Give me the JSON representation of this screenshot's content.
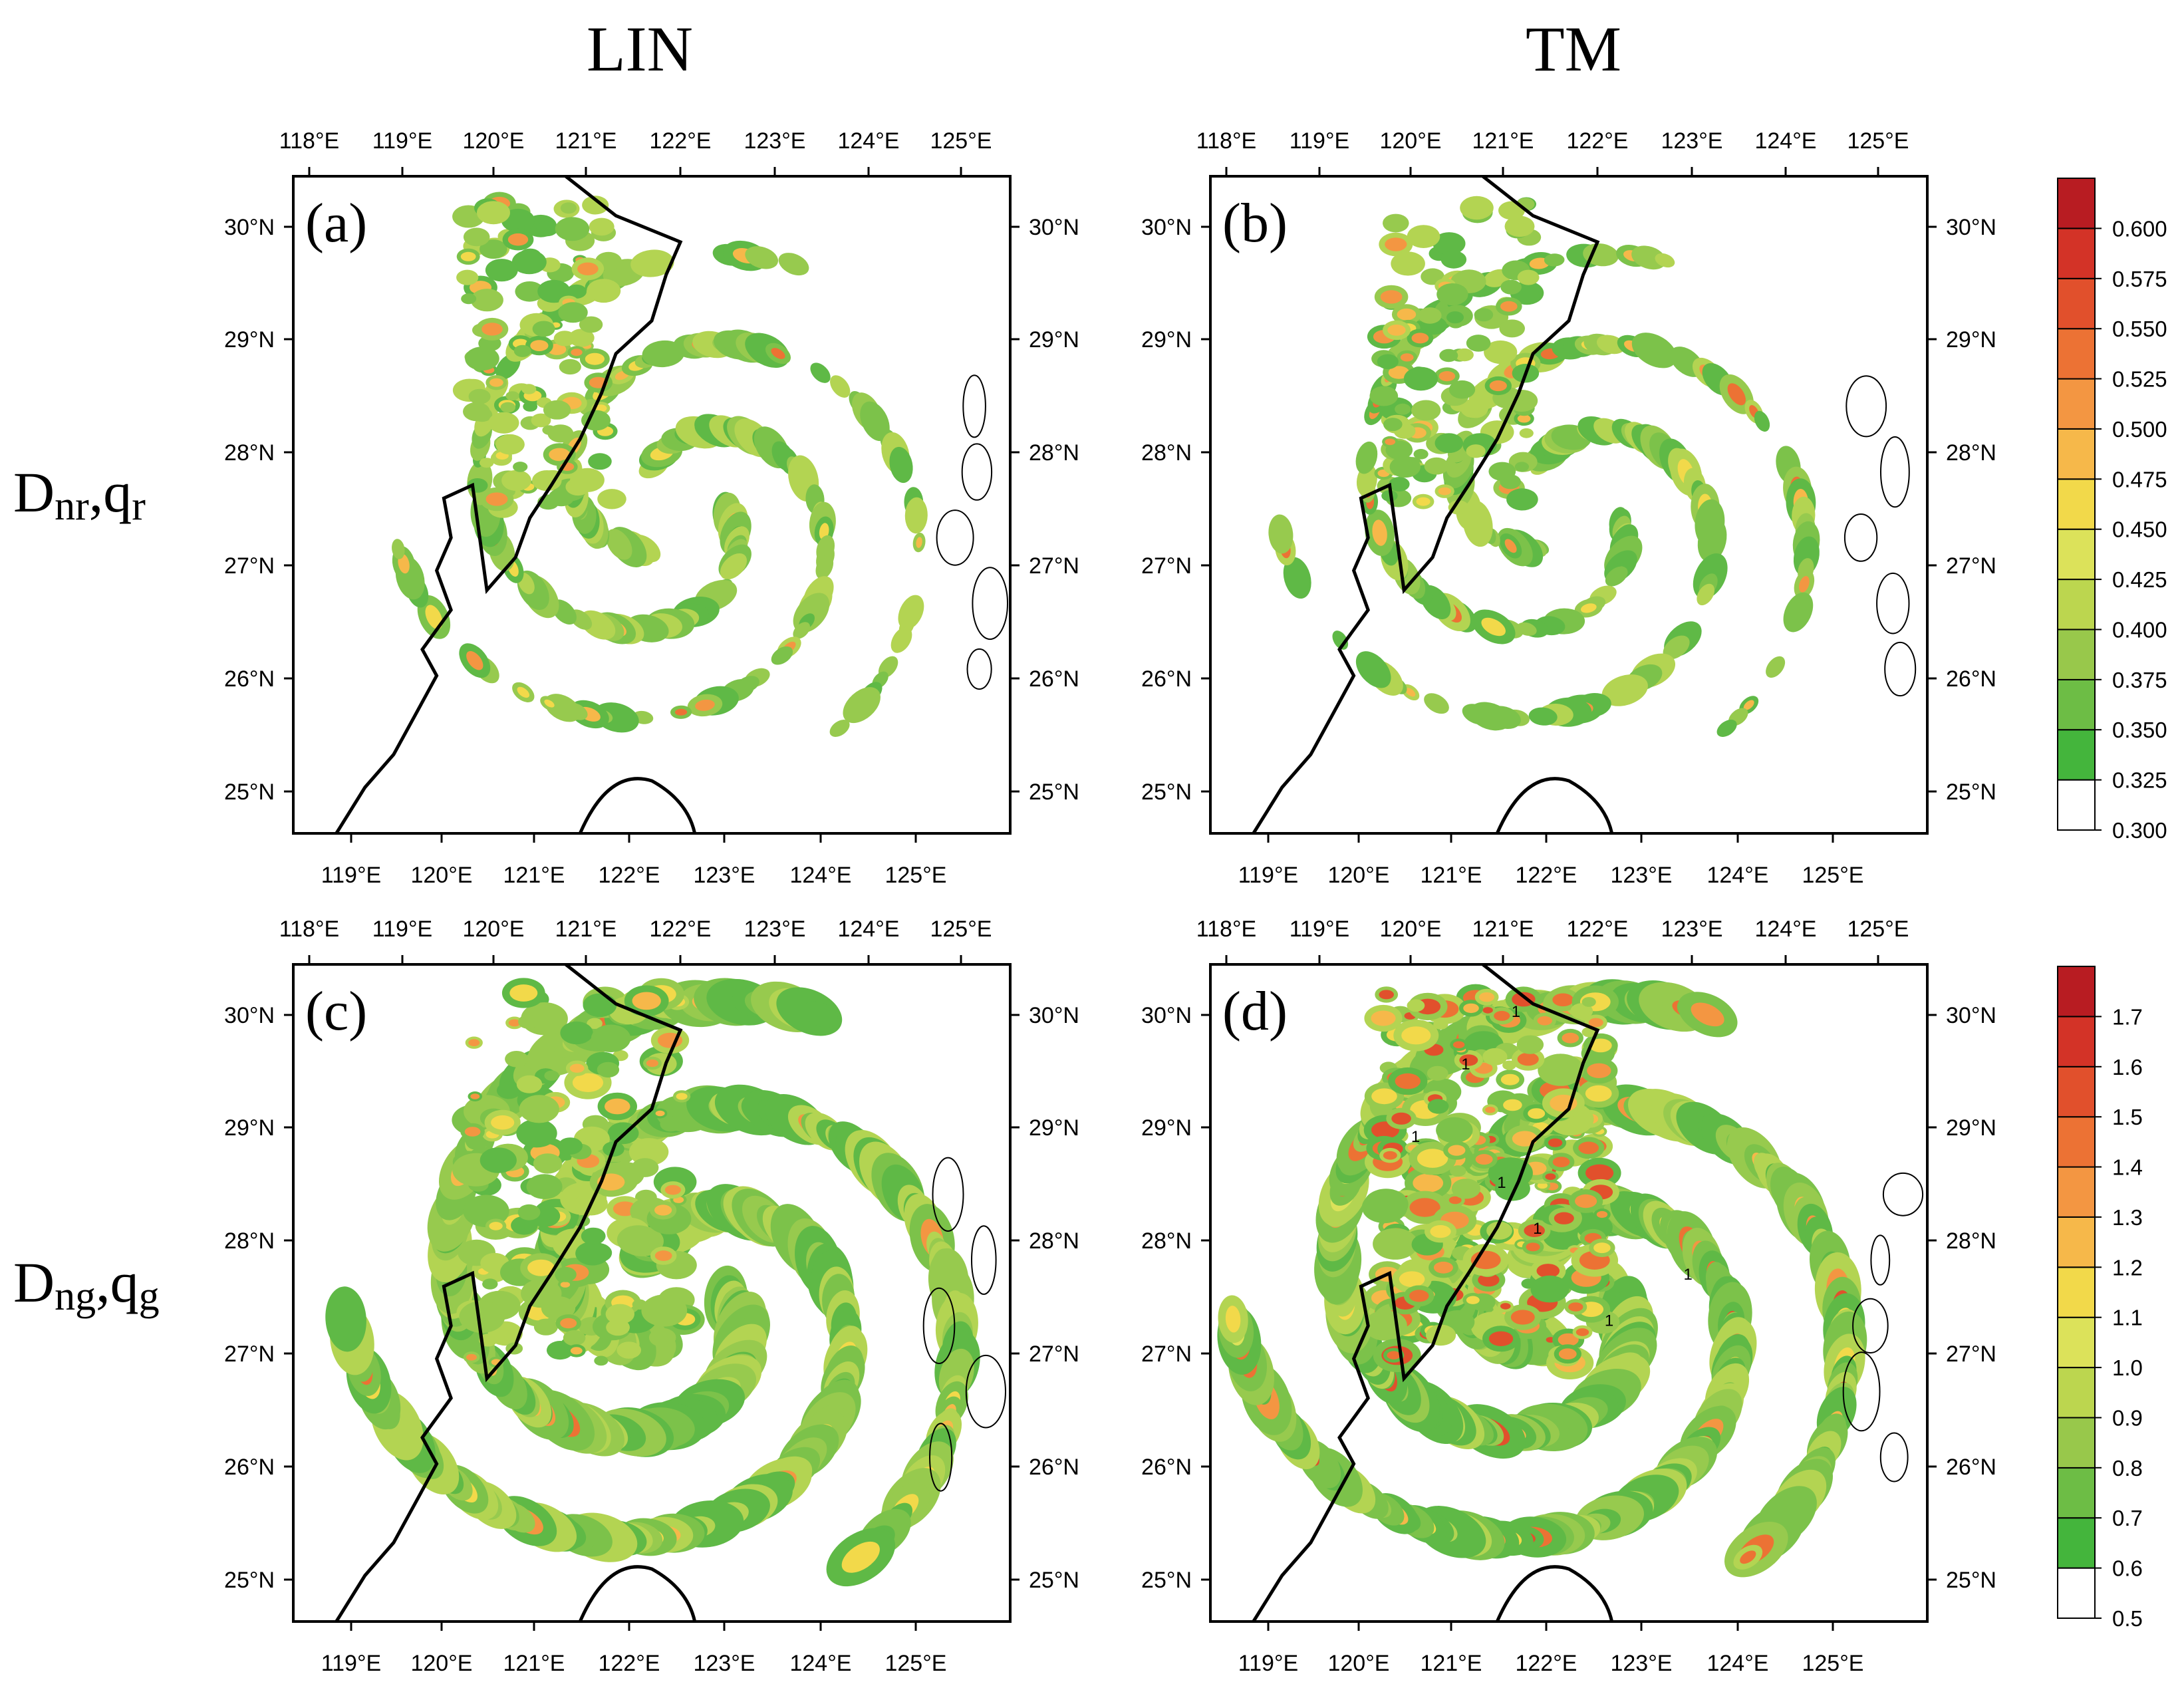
{
  "column_titles": [
    "LIN",
    "TM"
  ],
  "row_labels": [
    {
      "main1": "D",
      "sub1": "nr",
      "main2": ",q",
      "sub2": "r"
    },
    {
      "main1": "D",
      "sub1": "ng",
      "main2": ",q",
      "sub2": "g"
    }
  ],
  "lon_labels": [
    "118°E",
    "119°E",
    "120°E",
    "121°E",
    "122°E",
    "123°E",
    "124°E",
    "125°E"
  ],
  "lon_labels_bottom": [
    "119°E",
    "120°E",
    "121°E",
    "122°E",
    "123°E",
    "124°E",
    "125°E"
  ],
  "lat_labels": [
    "30°N",
    "29°N",
    "28°N",
    "27°N",
    "26°N",
    "25°N"
  ],
  "panels": [
    {
      "label": "(a)",
      "scheme": "LIN",
      "field": "Dnr,qr"
    },
    {
      "label": "(b)",
      "scheme": "TM",
      "field": "Dnr,qr"
    },
    {
      "label": "(c)",
      "scheme": "LIN",
      "field": "Dng,qg"
    },
    {
      "label": "(d)",
      "scheme": "TM",
      "field": "Dng,qg"
    }
  ],
  "colorbars": [
    {
      "labels": [
        "0.600",
        "0.575",
        "0.550",
        "0.525",
        "0.500",
        "0.475",
        "0.450",
        "0.425",
        "0.400",
        "0.375",
        "0.350",
        "0.325",
        "0.300"
      ],
      "colors": [
        "#ffffff",
        "#44b53c",
        "#6dbd45",
        "#98c84b",
        "#bcd64f",
        "#dce25a",
        "#f2d94a",
        "#f6b84a",
        "#f39642",
        "#ec7234",
        "#e1502c",
        "#d33327",
        "#b81c22"
      ]
    },
    {
      "labels": [
        "1.7",
        "1.6",
        "1.5",
        "1.4",
        "1.3",
        "1.2",
        "1.1",
        "1.0",
        "0.9",
        "0.8",
        "0.7",
        "0.6",
        "0.5"
      ],
      "colors": [
        "#ffffff",
        "#44b53c",
        "#6dbd45",
        "#98c84b",
        "#bcd64f",
        "#dce25a",
        "#f2d94a",
        "#f6b84a",
        "#f39642",
        "#ec7234",
        "#e1502c",
        "#d33327",
        "#b81c22"
      ]
    }
  ],
  "contour_label": "1"
}
